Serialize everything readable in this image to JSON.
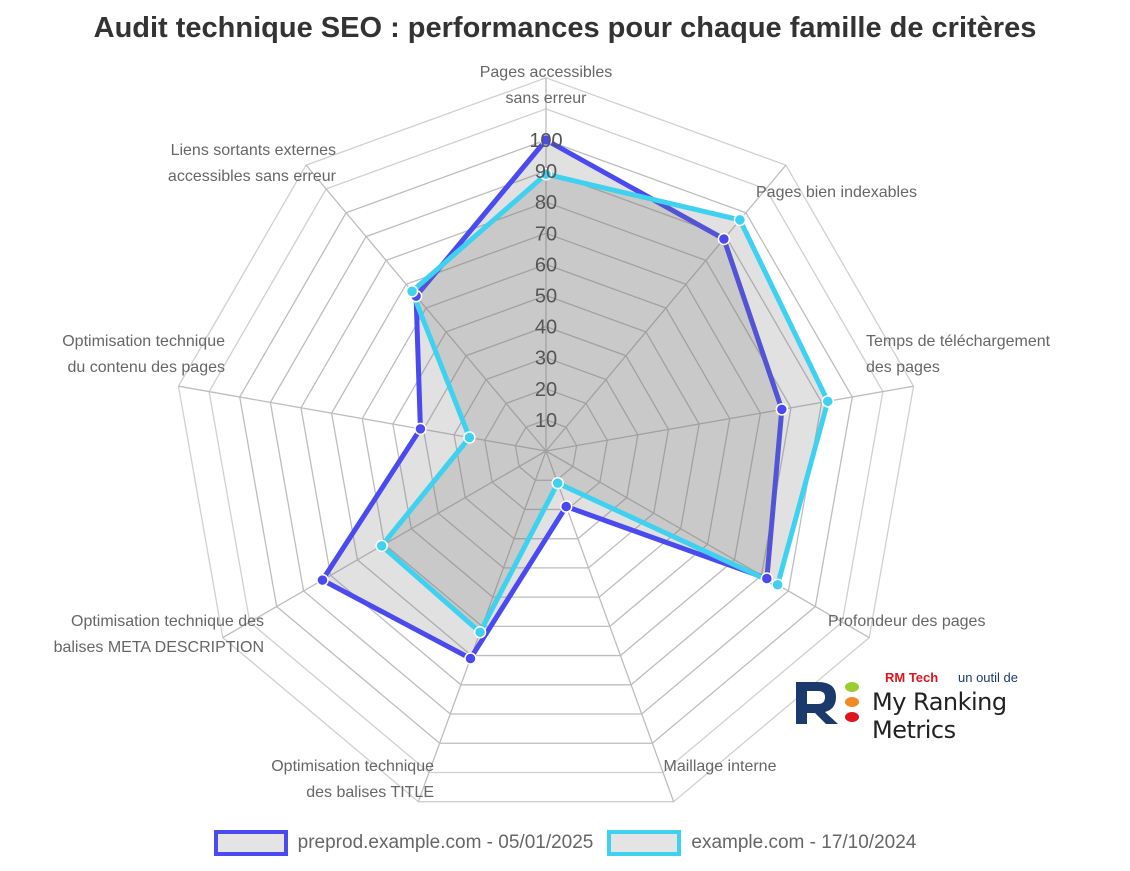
{
  "title": "Audit technique SEO : performances pour chaque famille de critères",
  "logo": {
    "tagline_brand": "RM Tech",
    "tagline_text": "un outil de",
    "name": "My Ranking Metrics",
    "colors": {
      "letter": "#1b3a6b",
      "dot1": "#9acd32",
      "dot2": "#f08a24",
      "dot3": "#e0141e"
    }
  },
  "legend": [
    {
      "label": "preprod.example.com - 05/01/2025",
      "color": "#4a4af0"
    },
    {
      "label": "example.com - 17/10/2024",
      "color": "#3fd1f0"
    }
  ],
  "axis_labels": [
    {
      "lines": [
        "Pages accessibles",
        "sans erreur"
      ]
    },
    {
      "lines": [
        "Pages bien indexables"
      ]
    },
    {
      "lines": [
        "Temps de téléchargement",
        "des pages"
      ]
    },
    {
      "lines": [
        "Profondeur des pages"
      ]
    },
    {
      "lines": [
        "Maillage interne"
      ]
    },
    {
      "lines": [
        "Optimisation technique",
        "des balises TITLE"
      ]
    },
    {
      "lines": [
        "Optimisation technique des",
        "balises META DESCRIPTION"
      ]
    },
    {
      "lines": [
        "Optimisation technique",
        "du contenu des pages"
      ]
    },
    {
      "lines": [
        "Liens sortants externes",
        "accessibles sans erreur"
      ]
    }
  ],
  "chart_data": {
    "type": "radar",
    "title": "Audit technique SEO : performances pour chaque famille de critères",
    "categories": [
      "Pages accessibles sans erreur",
      "Pages bien indexables",
      "Temps de téléchargement des pages",
      "Profondeur des pages",
      "Maillage interne",
      "Optimisation technique des balises TITLE",
      "Optimisation technique des balises META DESCRIPTION",
      "Optimisation technique du contenu des pages",
      "Liens sortants externes accessibles sans erreur"
    ],
    "series": [
      {
        "name": "preprod.example.com - 05/01/2025",
        "color": "#4a4af0",
        "values": [
          100,
          89,
          77,
          82,
          19,
          71,
          83,
          41,
          65
        ]
      },
      {
        "name": "example.com - 17/10/2024",
        "color": "#3fd1f0",
        "values": [
          89,
          97,
          92,
          86,
          11,
          62,
          61,
          25,
          67
        ]
      }
    ],
    "rlim": [
      0,
      100
    ],
    "ticks": [
      10,
      20,
      30,
      40,
      50,
      60,
      70,
      80,
      90,
      100
    ],
    "grid": true,
    "legend_position": "bottom"
  }
}
